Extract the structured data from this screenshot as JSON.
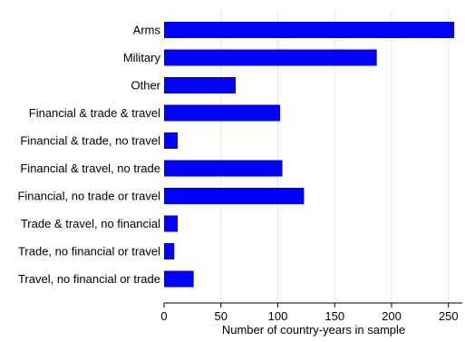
{
  "chart_data": {
    "type": "bar",
    "orientation": "horizontal",
    "categories": [
      "Arms",
      "Military",
      "Other",
      "Financial & trade & travel",
      "Financial & trade, no travel",
      "Financial & travel, no trade",
      "Financial, no trade or travel",
      "Trade & travel, no financial",
      "Trade, no financial or travel",
      "Travel, no financial or trade"
    ],
    "values": [
      255,
      187,
      63,
      102,
      12,
      104,
      123,
      12,
      9,
      26
    ],
    "xlabel": "Number of country-years in sample",
    "ylabel": "",
    "xlim": [
      0,
      260
    ],
    "xticks": [
      0,
      50,
      100,
      150,
      200,
      250
    ],
    "grid": true,
    "bar_color": "#0000ff"
  }
}
